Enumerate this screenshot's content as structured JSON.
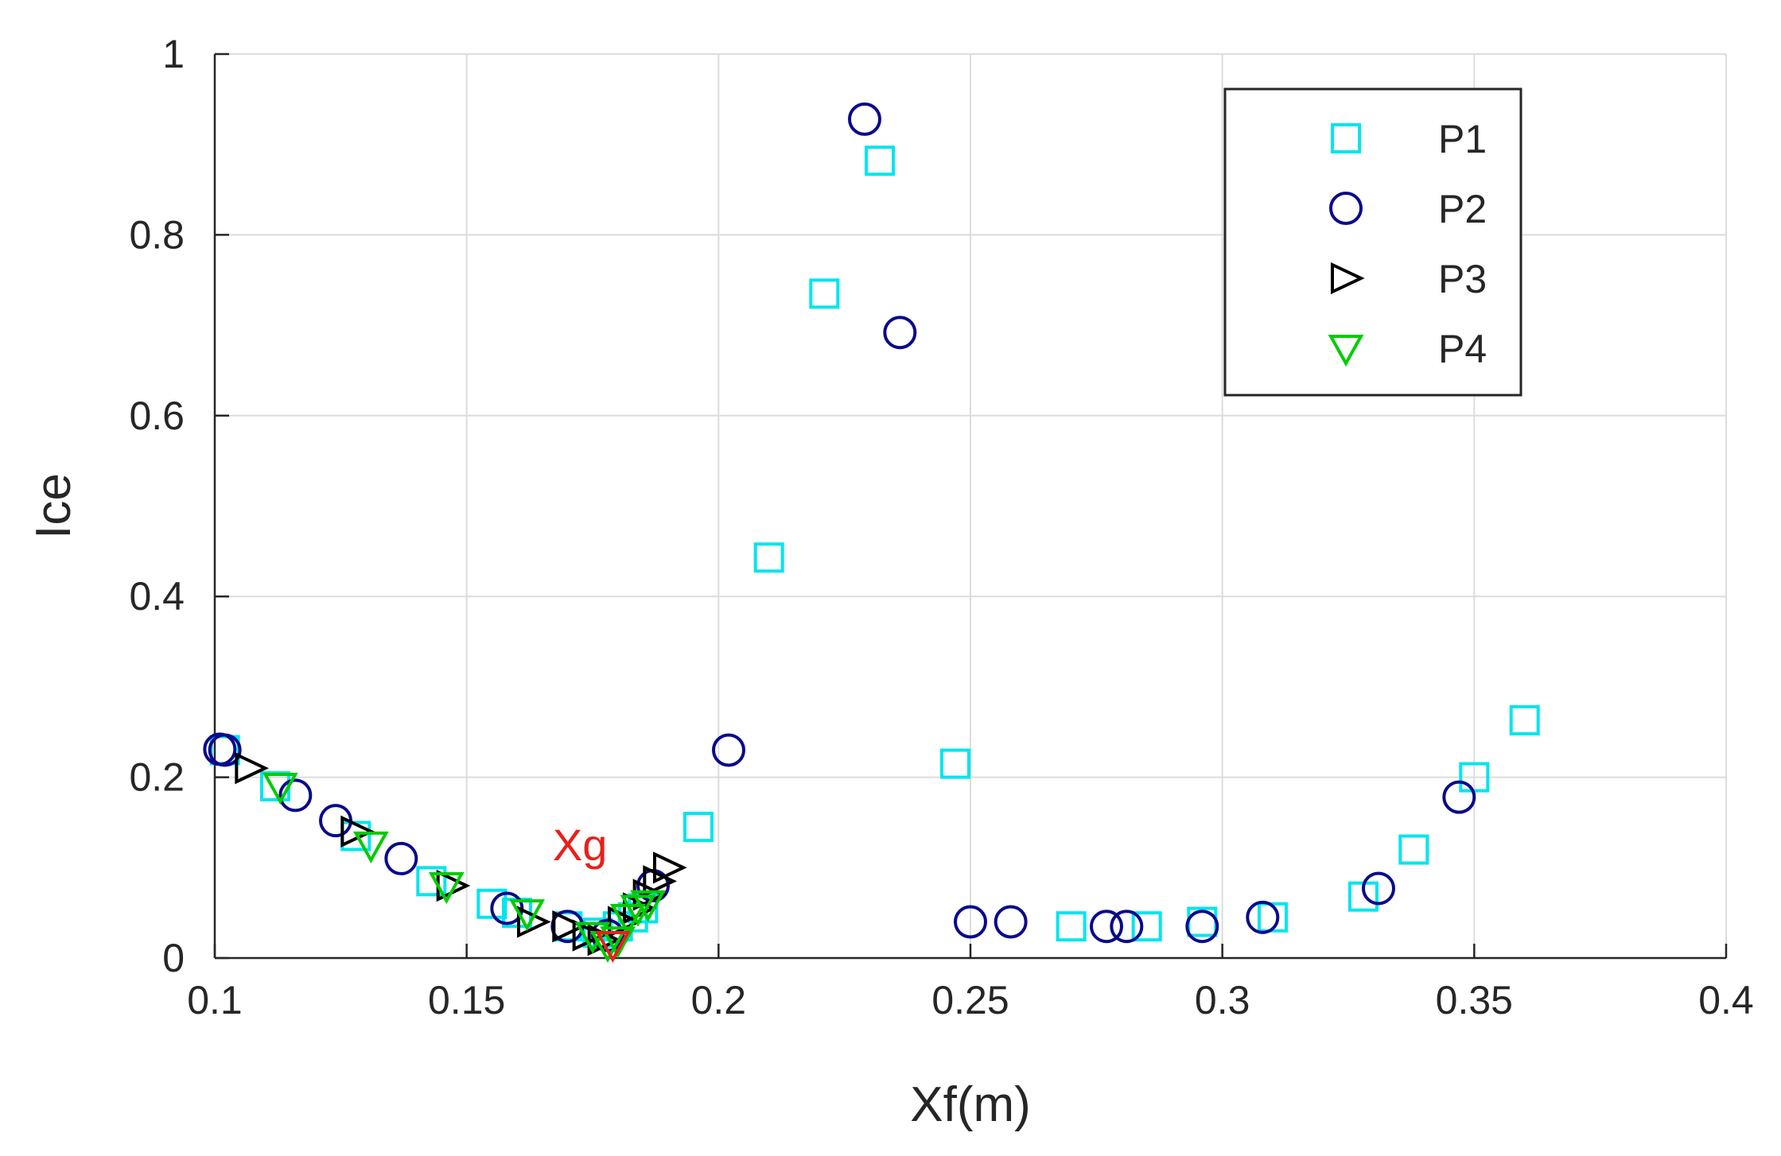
{
  "chart_data": {
    "type": "scatter",
    "title": "",
    "xlabel": "Xf(m)",
    "ylabel": "Ice",
    "xlim": [
      0.1,
      0.4
    ],
    "ylim": [
      0,
      1
    ],
    "xticks": [
      0.1,
      0.15,
      0.2,
      0.25,
      0.3,
      0.35,
      0.4
    ],
    "yticks": [
      0,
      0.2,
      0.4,
      0.6,
      0.8,
      1
    ],
    "xtick_labels": [
      "0.1",
      "0.15",
      "0.2",
      "0.25",
      "0.3",
      "0.35",
      "0.4"
    ],
    "ytick_labels": [
      "0",
      "0.2",
      "0.4",
      "0.6",
      "0.8",
      "1"
    ],
    "grid": true,
    "legend_position": "top-right",
    "series": [
      {
        "name": "P1",
        "marker": "square",
        "color": "#00e5ee",
        "points": [
          [
            0.102,
            0.23
          ],
          [
            0.112,
            0.19
          ],
          [
            0.128,
            0.135
          ],
          [
            0.143,
            0.085
          ],
          [
            0.155,
            0.06
          ],
          [
            0.16,
            0.05
          ],
          [
            0.17,
            0.035
          ],
          [
            0.176,
            0.028
          ],
          [
            0.18,
            0.035
          ],
          [
            0.183,
            0.045
          ],
          [
            0.185,
            0.055
          ],
          [
            0.196,
            0.145
          ],
          [
            0.21,
            0.443
          ],
          [
            0.221,
            0.735
          ],
          [
            0.232,
            0.882
          ],
          [
            0.247,
            0.215
          ],
          [
            0.27,
            0.035
          ],
          [
            0.285,
            0.035
          ],
          [
            0.296,
            0.04
          ],
          [
            0.31,
            0.045
          ],
          [
            0.328,
            0.068
          ],
          [
            0.338,
            0.12
          ],
          [
            0.35,
            0.2
          ],
          [
            0.36,
            0.263
          ]
        ]
      },
      {
        "name": "P2",
        "marker": "circle",
        "color": "#0a0a8c",
        "points": [
          [
            0.101,
            0.231
          ],
          [
            0.102,
            0.23
          ],
          [
            0.116,
            0.18
          ],
          [
            0.124,
            0.152
          ],
          [
            0.137,
            0.11
          ],
          [
            0.158,
            0.055
          ],
          [
            0.17,
            0.035
          ],
          [
            0.178,
            0.025
          ],
          [
            0.187,
            0.08
          ],
          [
            0.202,
            0.23
          ],
          [
            0.229,
            0.928
          ],
          [
            0.236,
            0.692
          ],
          [
            0.25,
            0.04
          ],
          [
            0.258,
            0.04
          ],
          [
            0.277,
            0.035
          ],
          [
            0.281,
            0.035
          ],
          [
            0.296,
            0.035
          ],
          [
            0.308,
            0.045
          ],
          [
            0.331,
            0.077
          ],
          [
            0.347,
            0.178
          ]
        ]
      },
      {
        "name": "P3",
        "marker": "triangle-right",
        "color": "#000000",
        "points": [
          [
            0.107,
            0.21
          ],
          [
            0.128,
            0.14
          ],
          [
            0.147,
            0.08
          ],
          [
            0.163,
            0.04
          ],
          [
            0.17,
            0.035
          ],
          [
            0.174,
            0.025
          ],
          [
            0.177,
            0.02
          ],
          [
            0.181,
            0.04
          ],
          [
            0.184,
            0.055
          ],
          [
            0.186,
            0.07
          ],
          [
            0.188,
            0.085
          ],
          [
            0.19,
            0.1
          ]
        ]
      },
      {
        "name": "P4",
        "marker": "triangle-down",
        "color": "#00cc00",
        "points": [
          [
            0.113,
            0.19
          ],
          [
            0.131,
            0.125
          ],
          [
            0.146,
            0.08
          ],
          [
            0.162,
            0.05
          ],
          [
            0.175,
            0.025
          ],
          [
            0.178,
            0.015
          ],
          [
            0.18,
            0.02
          ],
          [
            0.182,
            0.045
          ],
          [
            0.184,
            0.055
          ],
          [
            0.186,
            0.06
          ]
        ]
      }
    ],
    "annotations": [
      {
        "text": "Xg",
        "color": "#e8201a",
        "x": 0.1725,
        "y": 0.108
      }
    ],
    "highlight_point": {
      "x": 0.179,
      "y": 0.015,
      "marker": "triangle-down",
      "color": "#e8201a"
    }
  }
}
